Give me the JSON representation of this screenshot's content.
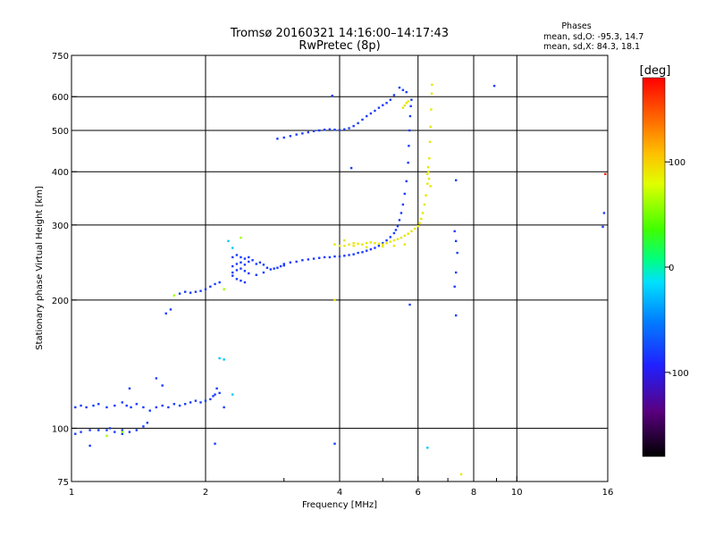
{
  "title": "Tromsø 20160321 14:16:00–14:17:43",
  "subtitle": "RwPretec (8p)",
  "phases_box": {
    "heading": "Phases",
    "line_o": "mean, sd,O: -95.3, 14.7",
    "line_x": "mean, sd,X: 84.3, 18.1"
  },
  "chart_data": {
    "type": "scatter",
    "xlabel": "Frequency [MHz]",
    "ylabel": "Stationary phase Virtual Height [km]",
    "x_scale": "log",
    "y_scale": "log",
    "xlim": [
      1,
      16
    ],
    "ylim": [
      75,
      750
    ],
    "x_ticks": [
      1,
      2,
      4,
      6,
      8,
      10,
      16
    ],
    "x_tick_labels": [
      "1",
      "2",
      "4",
      "6",
      "8",
      "10",
      "16"
    ],
    "x_minor_ticks": [
      3,
      5,
      7,
      9
    ],
    "y_ticks": [
      75,
      100,
      200,
      300,
      400,
      500,
      600,
      750
    ],
    "y_tick_labels": [
      "75",
      "100",
      "200",
      "300",
      "400",
      "500",
      "600",
      "750"
    ],
    "grid": true,
    "colorbar": {
      "label": "[deg]",
      "range": [
        -180,
        180
      ],
      "ticks": [
        100,
        0,
        -100
      ],
      "tick_labels": [
        "100",
        "0",
        "-100"
      ]
    },
    "series": [
      {
        "color": "#1a3cff",
        "phase": -95,
        "points": [
          [
            1.02,
            112
          ],
          [
            1.05,
            113
          ],
          [
            1.08,
            112
          ],
          [
            1.12,
            113
          ],
          [
            1.15,
            114
          ],
          [
            1.2,
            112
          ],
          [
            1.25,
            113
          ],
          [
            1.3,
            115
          ],
          [
            1.33,
            113
          ],
          [
            1.36,
            112
          ],
          [
            1.4,
            114
          ],
          [
            1.45,
            112
          ],
          [
            1.5,
            110
          ],
          [
            1.55,
            112
          ],
          [
            1.6,
            113
          ],
          [
            1.65,
            112
          ],
          [
            1.7,
            114
          ],
          [
            1.75,
            113
          ],
          [
            1.8,
            114
          ],
          [
            1.85,
            115
          ],
          [
            1.9,
            116
          ],
          [
            1.95,
            115
          ],
          [
            2.0,
            116
          ],
          [
            2.05,
            117
          ],
          [
            2.08,
            119
          ],
          [
            2.1,
            120
          ],
          [
            2.12,
            124
          ],
          [
            2.15,
            121
          ],
          [
            1.02,
            97
          ],
          [
            1.05,
            98
          ],
          [
            1.1,
            99
          ],
          [
            1.15,
            99
          ],
          [
            1.2,
            99
          ],
          [
            1.25,
            98
          ],
          [
            1.3,
            99
          ],
          [
            1.35,
            98
          ],
          [
            1.4,
            99
          ],
          [
            1.45,
            101
          ],
          [
            1.48,
            103
          ],
          [
            1.63,
            186
          ],
          [
            1.67,
            190
          ],
          [
            1.75,
            207
          ],
          [
            1.8,
            209
          ],
          [
            1.85,
            208
          ],
          [
            1.9,
            209
          ],
          [
            1.95,
            210
          ],
          [
            2.0,
            212
          ],
          [
            2.05,
            215
          ],
          [
            2.1,
            218
          ],
          [
            2.15,
            220
          ],
          [
            2.3,
            240
          ],
          [
            2.35,
            243
          ],
          [
            2.4,
            245
          ],
          [
            2.45,
            242
          ],
          [
            2.5,
            246
          ],
          [
            2.55,
            248
          ],
          [
            2.6,
            243
          ],
          [
            2.65,
            245
          ],
          [
            2.7,
            242
          ],
          [
            2.75,
            238
          ],
          [
            2.8,
            236
          ],
          [
            2.85,
            237
          ],
          [
            2.9,
            238
          ],
          [
            2.95,
            240
          ],
          [
            3.0,
            241
          ],
          [
            2.3,
            232
          ],
          [
            2.35,
            235
          ],
          [
            2.4,
            237
          ],
          [
            2.45,
            234
          ],
          [
            2.5,
            231
          ],
          [
            2.6,
            229
          ],
          [
            2.7,
            232
          ],
          [
            2.3,
            252
          ],
          [
            2.35,
            255
          ],
          [
            2.4,
            252
          ],
          [
            2.45,
            250
          ],
          [
            2.5,
            252
          ],
          [
            2.3,
            228
          ],
          [
            2.35,
            224
          ],
          [
            2.4,
            222
          ],
          [
            2.45,
            220
          ],
          [
            3.0,
            243
          ],
          [
            3.1,
            245
          ],
          [
            3.2,
            246
          ],
          [
            3.3,
            248
          ],
          [
            3.4,
            249
          ],
          [
            3.5,
            250
          ],
          [
            3.6,
            251
          ],
          [
            3.7,
            252
          ],
          [
            3.8,
            252
          ],
          [
            3.9,
            253
          ],
          [
            4.0,
            253
          ],
          [
            4.1,
            254
          ],
          [
            4.2,
            255
          ],
          [
            4.3,
            256
          ],
          [
            4.4,
            258
          ],
          [
            4.5,
            259
          ],
          [
            4.6,
            261
          ],
          [
            4.7,
            263
          ],
          [
            4.8,
            265
          ],
          [
            4.9,
            268
          ],
          [
            5.0,
            272
          ],
          [
            5.1,
            276
          ],
          [
            5.2,
            281
          ],
          [
            5.3,
            287
          ],
          [
            5.35,
            292
          ],
          [
            5.4,
            298
          ],
          [
            5.45,
            308
          ],
          [
            5.5,
            320
          ],
          [
            5.55,
            335
          ],
          [
            5.6,
            355
          ],
          [
            5.65,
            380
          ],
          [
            5.7,
            420
          ],
          [
            5.72,
            460
          ],
          [
            5.74,
            500
          ],
          [
            5.76,
            540
          ],
          [
            5.78,
            570
          ],
          [
            5.8,
            590
          ],
          [
            2.9,
            478
          ],
          [
            3.0,
            481
          ],
          [
            3.1,
            485
          ],
          [
            3.2,
            489
          ],
          [
            3.3,
            492
          ],
          [
            3.4,
            495
          ],
          [
            3.5,
            498
          ],
          [
            3.6,
            500
          ],
          [
            3.7,
            502
          ],
          [
            3.8,
            503
          ],
          [
            3.9,
            502
          ],
          [
            4.0,
            501
          ],
          [
            4.1,
            503
          ],
          [
            4.2,
            506
          ],
          [
            4.3,
            512
          ],
          [
            4.4,
            520
          ],
          [
            4.5,
            530
          ],
          [
            4.6,
            540
          ],
          [
            4.7,
            548
          ],
          [
            4.8,
            556
          ],
          [
            4.9,
            565
          ],
          [
            5.0,
            573
          ],
          [
            5.1,
            580
          ],
          [
            5.2,
            590
          ],
          [
            5.3,
            605
          ],
          [
            5.45,
            630
          ],
          [
            5.55,
            622
          ],
          [
            5.65,
            615
          ],
          [
            3.85,
            603
          ],
          [
            4.25,
            408
          ],
          [
            3.9,
            92
          ],
          [
            5.75,
            195
          ],
          [
            7.3,
            382
          ],
          [
            7.25,
            290
          ],
          [
            7.3,
            275
          ],
          [
            7.35,
            258
          ],
          [
            7.3,
            232
          ],
          [
            7.25,
            215
          ],
          [
            7.3,
            184
          ],
          [
            8.9,
            636
          ],
          [
            15.7,
            320
          ],
          [
            15.6,
            297
          ],
          [
            1.55,
            131
          ],
          [
            1.6,
            126
          ],
          [
            1.35,
            124
          ],
          [
            2.2,
            112
          ],
          [
            1.1,
            91
          ],
          [
            1.22,
            100
          ],
          [
            1.3,
            97
          ],
          [
            2.1,
            92
          ]
        ]
      },
      {
        "color": "#e6e600",
        "phase": 84,
        "points": [
          [
            3.9,
            270
          ],
          [
            4.0,
            268
          ],
          [
            4.1,
            268
          ],
          [
            4.2,
            270
          ],
          [
            4.3,
            272
          ],
          [
            4.4,
            271
          ],
          [
            4.5,
            270
          ],
          [
            4.6,
            272
          ],
          [
            4.7,
            273
          ],
          [
            4.8,
            272
          ],
          [
            4.9,
            271
          ],
          [
            5.0,
            270
          ],
          [
            5.1,
            272
          ],
          [
            5.2,
            274
          ],
          [
            5.3,
            276
          ],
          [
            5.4,
            278
          ],
          [
            5.5,
            280
          ],
          [
            5.6,
            283
          ],
          [
            5.7,
            286
          ],
          [
            5.8,
            290
          ],
          [
            5.9,
            294
          ],
          [
            6.0,
            298
          ],
          [
            6.05,
            303
          ],
          [
            6.1,
            310
          ],
          [
            6.15,
            320
          ],
          [
            6.2,
            335
          ],
          [
            6.25,
            352
          ],
          [
            6.3,
            375
          ],
          [
            6.33,
            400
          ],
          [
            6.36,
            430
          ],
          [
            6.38,
            470
          ],
          [
            6.4,
            510
          ],
          [
            6.42,
            560
          ],
          [
            6.44,
            610
          ],
          [
            6.45,
            640
          ],
          [
            6.3,
            395
          ],
          [
            6.32,
            410
          ],
          [
            6.35,
            385
          ],
          [
            6.4,
            370
          ],
          [
            5.55,
            565
          ],
          [
            5.6,
            572
          ],
          [
            5.65,
            580
          ],
          [
            5.7,
            585
          ],
          [
            4.1,
            276
          ],
          [
            4.3,
            268
          ],
          [
            4.6,
            266
          ],
          [
            5.0,
            267
          ],
          [
            5.3,
            268
          ],
          [
            5.6,
            270
          ],
          [
            7.5,
            78
          ],
          [
            3.9,
            200
          ]
        ]
      },
      {
        "color": "#9fff00",
        "phase": 40,
        "points": [
          [
            1.3,
            98
          ],
          [
            1.7,
            205
          ],
          [
            2.2,
            212
          ],
          [
            2.4,
            280
          ],
          [
            1.2,
            96
          ]
        ]
      },
      {
        "color": "#00c8ff",
        "phase": -60,
        "points": [
          [
            2.25,
            275
          ],
          [
            2.3,
            265
          ],
          [
            2.2,
            145
          ],
          [
            2.15,
            146
          ],
          [
            2.3,
            120
          ],
          [
            6.3,
            90
          ]
        ]
      },
      {
        "color": "#ff2000",
        "phase": 170,
        "points": [
          [
            15.8,
            395
          ]
        ]
      }
    ]
  }
}
